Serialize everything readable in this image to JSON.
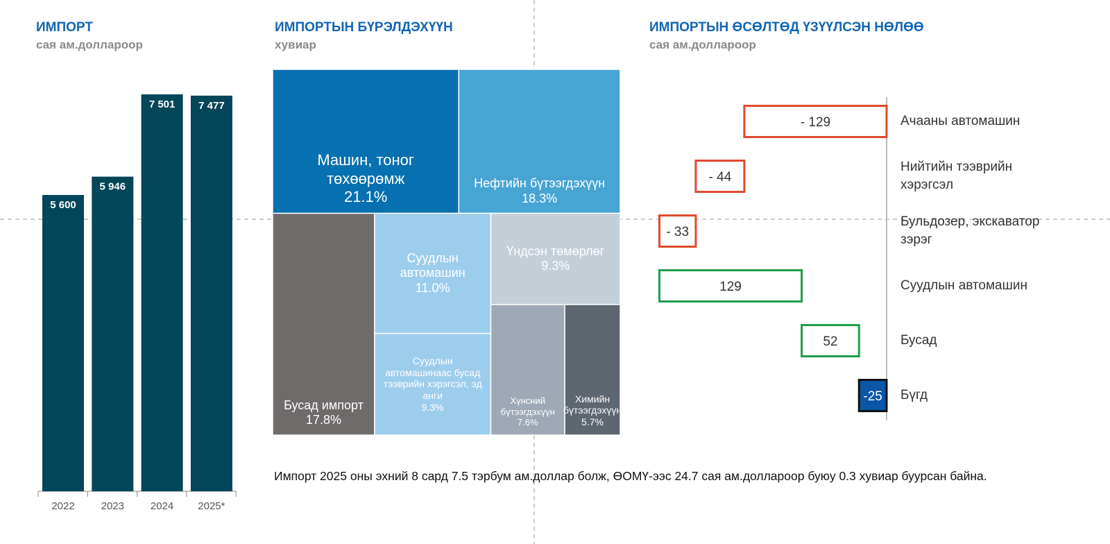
{
  "chart_data": [
    {
      "type": "bar",
      "title": "ИМПОРТ",
      "subtitle": "сая ам.доллароор",
      "categories": [
        "2022",
        "2023",
        "2024",
        "2025*"
      ],
      "values": [
        5600,
        5946,
        7501,
        7477
      ],
      "value_labels": [
        "5 600",
        "5 946",
        "7 501",
        "7 477"
      ],
      "color": "#04465a"
    },
    {
      "type": "treemap",
      "title": "ИМПОРТЫН БҮРЭЛДЭХҮҮН",
      "subtitle": "хувиар",
      "categories": [
        "Машин, тоног төхөөрөмж",
        "Нефтийн бүтээгдэхүүн",
        "Бусад импорт",
        "Суудлын автомашин",
        "Суудлын автомашинаас бусад тээврийн хэрэгсэл, эд анги",
        "Үндсэн төмөрлөг",
        "Хүнсний бүтээгдэхүүн",
        "Химийн бүтээгдэхүүн"
      ],
      "values": [
        21.1,
        18.3,
        17.8,
        11.0,
        9.3,
        9.3,
        7.6,
        5.7
      ],
      "value_labels": [
        "21.1%",
        "18.3%",
        "17.8%",
        "11.0%",
        "9.3%",
        "9.3%",
        "7.6%",
        "5.7%"
      ],
      "colors": [
        "#0670b0",
        "#47a5d4",
        "#6f6b6b",
        "#9dcdec",
        "#9dcdec",
        "#c5cfd8",
        "#9fa9b5",
        "#5e6670"
      ]
    },
    {
      "type": "waterfall",
      "title": "ИМПОРТЫН ӨСӨЛТӨД ҮЗҮҮЛСЭН НӨЛӨӨ",
      "subtitle": "сая ам.доллароор",
      "categories": [
        "Ачааны автомашин",
        "Нийтийн тээврийн хэрэгсэл",
        "Бульдозер, экскаватор зэрэг",
        "Суудлын автомашин",
        "Бусад",
        "Бүгд"
      ],
      "values": [
        -129,
        -44,
        -33,
        129,
        52,
        -25
      ],
      "value_labels": [
        "- 129",
        "- 44",
        "- 33",
        "129",
        "52",
        "-25"
      ],
      "is_total": [
        false,
        false,
        false,
        false,
        false,
        true
      ],
      "increase_color": "#1e9e4c",
      "decrease_color": "#e04a30",
      "total_color": "#0a56a8"
    }
  ],
  "note": "Импорт 2025 оны эхний 8 сард 7.5 тэрбум ам.доллар болж, ӨОМҮ-ээс 24.7 сая ам.доллароор буюу 0.3 хувиар буурсан байна."
}
